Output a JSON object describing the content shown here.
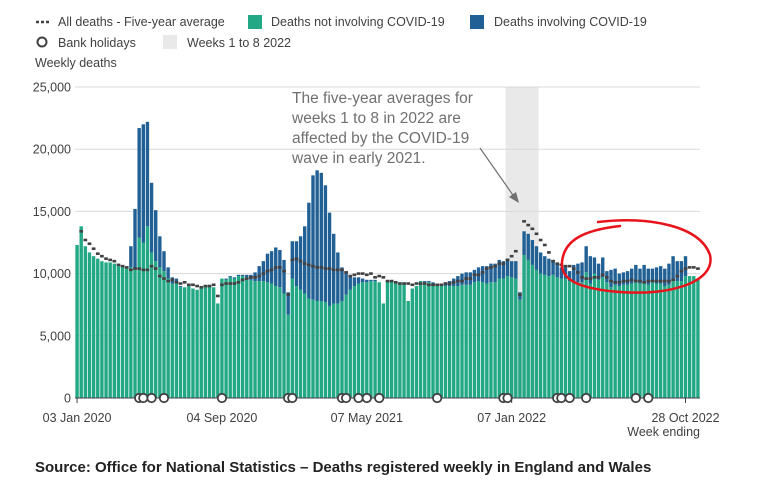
{
  "chart_data": {
    "type": "bar",
    "ylabel": "Weekly deaths",
    "xlabel": "Week ending",
    "ylim": [
      0,
      25000
    ],
    "yticks": [
      "0",
      "5,000",
      "10,000",
      "15,000",
      "20,000",
      "25,000"
    ],
    "x_tick_labels": [
      "03 Jan 2020",
      "04 Sep 2020",
      "07 May 2021",
      "07 Jan 2022",
      "28 Oct 2022"
    ],
    "x_tick_weeks": [
      0,
      35,
      70,
      105,
      147
    ],
    "grid": true,
    "legend": {
      "placement": "top-left",
      "items": [
        {
          "label": "All deaths - Five-year average",
          "kind": "dashed-line"
        },
        {
          "label": "Deaths not involving COVID-19",
          "kind": "box",
          "color": "#22a884"
        },
        {
          "label": "Deaths involving COVID-19",
          "kind": "box",
          "color": "#206095"
        },
        {
          "label": "Bank holidays",
          "kind": "circle"
        },
        {
          "label": "Weeks 1 to 8 2022",
          "kind": "shade"
        }
      ]
    },
    "colors": {
      "not_covid": "#22a884",
      "covid": "#206095",
      "average": "#414042",
      "shade": "#e9e9e9",
      "highlight": "#e8141b"
    },
    "week_start": "03 Jan 2020",
    "series": [
      {
        "name": "Deaths not involving COVID-19",
        "values": [
          12300,
          13800,
          12200,
          11700,
          11400,
          11200,
          11000,
          10900,
          10900,
          10800,
          10600,
          10500,
          10400,
          10500,
          10400,
          12900,
          12500,
          13800,
          11700,
          11000,
          10500,
          10200,
          9600,
          9200,
          9300,
          8900,
          8900,
          9000,
          8800,
          8700,
          8900,
          9000,
          9100,
          8900,
          7600,
          9600,
          9500,
          9700,
          9600,
          9800,
          9800,
          9700,
          9500,
          9400,
          9400,
          9400,
          9300,
          9200,
          9000,
          8900,
          8400,
          6700,
          9600,
          9000,
          8700,
          8400,
          8000,
          7900,
          7800,
          7800,
          7700,
          7400,
          7600,
          7600,
          7800,
          8300,
          8700,
          9000,
          9200,
          9300,
          9300,
          9400,
          9400,
          9300,
          7600,
          9400,
          9400,
          9300,
          9300,
          9300,
          7800,
          8800,
          9000,
          9400,
          9300,
          9300,
          9200,
          9100,
          9000,
          9000,
          9000,
          9000,
          9000,
          9100,
          9100,
          9100,
          9300,
          9400,
          9300,
          9200,
          9300,
          9300,
          9600,
          9600,
          9800,
          9700,
          9600,
          7900,
          11500,
          11100,
          10700,
          10300,
          10000,
          9900,
          9800,
          9900,
          9700,
          9600,
          9600,
          9400,
          9400,
          9300,
          9300,
          10100,
          9200,
          10000,
          9500,
          9700,
          9300,
          8900,
          9100,
          9000,
          9100,
          9100,
          9200,
          9300,
          9200,
          9300,
          9100,
          9300,
          9200,
          9200,
          9000,
          9100,
          9400,
          9400,
          9400,
          9800,
          9800,
          9800,
          9600
        ],
        "covid": [
          0,
          0,
          0,
          0,
          0,
          0,
          0,
          0,
          0,
          0,
          0,
          0,
          100,
          1700,
          4800,
          8800,
          9500,
          8400,
          5600,
          4100,
          2500,
          1600,
          900,
          500,
          300,
          100,
          0,
          0,
          0,
          0,
          0,
          0,
          0,
          0,
          0,
          0,
          100,
          100,
          100,
          100,
          100,
          200,
          400,
          700,
          1200,
          1600,
          2300,
          2600,
          3100,
          3000,
          2700,
          1800,
          3000,
          3600,
          4300,
          5400,
          7700,
          10000,
          10500,
          10300,
          9400,
          7500,
          5600,
          4100,
          2700,
          1800,
          1100,
          700,
          500,
          300,
          200,
          100,
          100,
          0,
          0,
          0,
          0,
          0,
          0,
          0,
          0,
          0,
          0,
          0,
          100,
          100,
          100,
          100,
          200,
          300,
          400,
          600,
          800,
          900,
          1000,
          1000,
          1000,
          1100,
          1300,
          1400,
          1500,
          1500,
          1500,
          1400,
          1400,
          1300,
          1400,
          600,
          1900,
          2100,
          2000,
          1900,
          1700,
          1500,
          1400,
          1200,
          1100,
          900,
          900,
          800,
          1300,
          1500,
          1600,
          2100,
          2200,
          1300,
          1300,
          1600,
          900,
          1400,
          1300,
          1000,
          1000,
          1100,
          1200,
          1400,
          1200,
          1400,
          1300,
          1100,
          1300,
          1400,
          1400,
          1700,
          2000,
          1600,
          1600,
          1600
        ]
      },
      {
        "name": "All deaths - Five-year average",
        "values": [
          null,
          13400,
          12700,
          12400,
          12000,
          11600,
          11400,
          11200,
          11100,
          11000,
          10700,
          10600,
          10500,
          10300,
          10400,
          10400,
          10300,
          10300,
          10600,
          10400,
          9800,
          9600,
          9400,
          9500,
          9300,
          9200,
          9300,
          9100,
          9100,
          9000,
          8900,
          9000,
          9000,
          9100,
          8200,
          9100,
          9200,
          9200,
          9200,
          9300,
          9500,
          9600,
          9700,
          9700,
          9800,
          10000,
          10200,
          10300,
          10500,
          10500,
          10200,
          8300,
          11100,
          11200,
          11000,
          10800,
          10700,
          10600,
          10500,
          10500,
          10400,
          10400,
          10300,
          10300,
          10300,
          10100,
          9800,
          9900,
          10000,
          10000,
          9900,
          10000,
          9700,
          9800,
          9700,
          9400,
          9400,
          9300,
          9200,
          9200,
          9200,
          9100,
          9200,
          9200,
          9200,
          9100,
          9100,
          9100,
          9100,
          9200,
          9200,
          9300,
          9400,
          9400,
          9600,
          9600,
          9900,
          9900,
          10100,
          10400,
          10500,
          10600,
          10800,
          10800,
          11100,
          11400,
          11800,
          8300,
          14200,
          13900,
          13600,
          13200,
          12700,
          12300,
          11700,
          11000,
          10800,
          10700,
          10600,
          10600,
          10400,
          10100,
          9700,
          9600,
          9600,
          9700,
          9700,
          9900,
          9700,
          9400,
          9300,
          9300,
          9400,
          9400,
          9500,
          9400,
          9400,
          9300,
          9400,
          9400,
          9400,
          9400,
          9400,
          9400,
          9500,
          9800,
          10200,
          10400,
          10500,
          10500,
          10400
        ]
      }
    ],
    "bank_holiday_weeks": [
      15,
      16,
      18,
      21,
      35,
      51,
      52,
      64,
      65,
      68,
      70,
      73,
      87,
      103,
      104,
      116,
      117,
      119,
      123,
      135,
      138
    ],
    "shaded_region": {
      "label": "Weeks 1 to 8 2022",
      "start_week": 104,
      "end_week": 111
    },
    "annotation": "The five-year averages for weeks 1 to 8 in 2022 are affected by the COVID-19 wave in early 2021.",
    "annotation_lines": [
      "The five-year averages for",
      "weeks 1 to 8 in 2022 are",
      "affected by the COVID-19",
      "wave in early 2021."
    ]
  },
  "source": "Source: Office for National Statistics – Deaths registered weekly in England and Wales"
}
